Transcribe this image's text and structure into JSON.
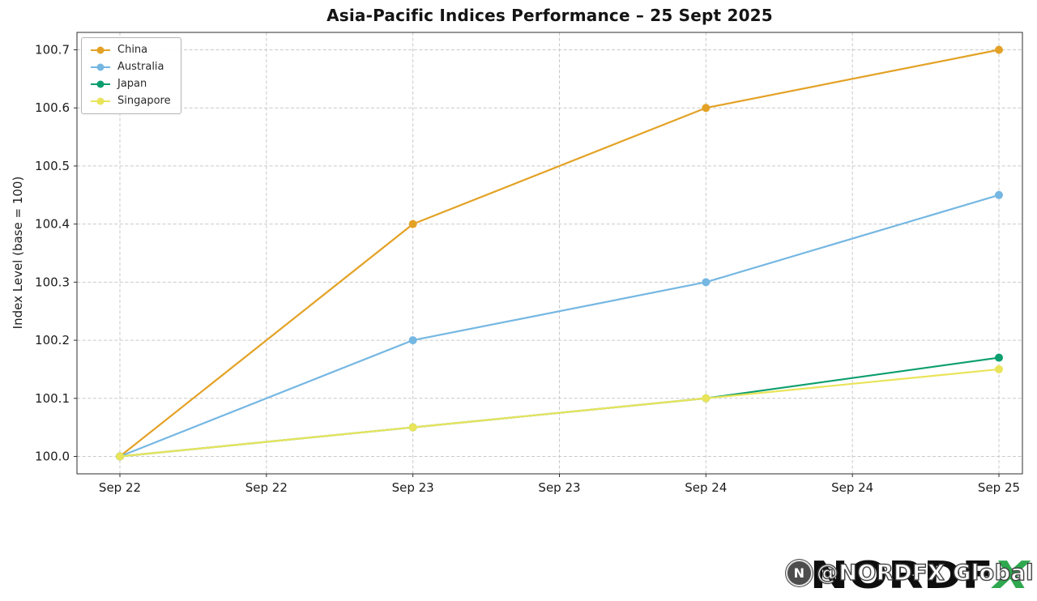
{
  "title": "Asia-Pacific Indices Performance – 25 Sept 2025",
  "chart_data": {
    "type": "line",
    "title": "Asia-Pacific Indices Performance – 25 Sept 2025",
    "xlabel": "",
    "ylabel": "Index Level (base = 100)",
    "x_tick_labels": [
      "Sep 22",
      "Sep 22",
      "Sep 23",
      "Sep 23",
      "Sep 24",
      "Sep 24",
      "Sep 25"
    ],
    "x_data_tick_indices": [
      0,
      2,
      4,
      6
    ],
    "yticks": [
      100.0,
      100.1,
      100.2,
      100.3,
      100.4,
      100.5,
      100.6,
      100.7
    ],
    "ylim": [
      99.97,
      100.73
    ],
    "grid": true,
    "grid_style": "dashed",
    "legend_position": "upper left",
    "series": [
      {
        "name": "China",
        "color": "#E3A226",
        "values": [
          100.0,
          100.4,
          100.6,
          100.7
        ]
      },
      {
        "name": "Australia",
        "color": "#75B7E2",
        "values": [
          100.0,
          100.2,
          100.3,
          100.45
        ]
      },
      {
        "name": "Japan",
        "color": "#0B9E6E",
        "values": [
          100.0,
          100.05,
          100.1,
          100.17
        ]
      },
      {
        "name": "Singapore",
        "color": "#E9E45A",
        "values": [
          100.0,
          100.05,
          100.1,
          100.15
        ]
      }
    ]
  },
  "watermark": {
    "logo_main": "NORDF",
    "logo_x": "X",
    "logo_x_color": "#2FA84F",
    "icon_glyph": "N",
    "handle": "@NORDFX Global"
  }
}
